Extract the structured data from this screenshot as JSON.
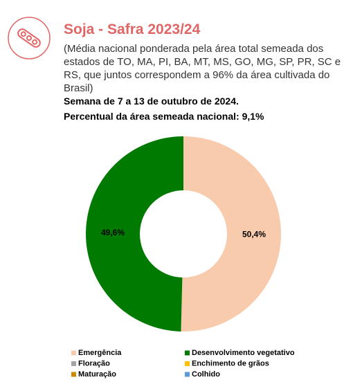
{
  "chart_data": {
    "type": "donut",
    "title": "Soja - Safra 2023/24",
    "subtitle": "(Média nacional ponderada pela área total semeada dos estados de TO, MA, PI, BA, MT, MS, GO, MG, SP, PR, SC e RS, que juntos correspondem a 96% da área cultivada do Brasil)",
    "notes": [
      "Semana de 7 a 13 de outubro de 2024.",
      "Percentual da área semeada nacional: 9,1%"
    ],
    "categories": [
      "Emergência",
      "Desenvolvimento vegetativo",
      "Floração",
      "Enchimento de grãos",
      "Maturação",
      "Colhido"
    ],
    "values": [
      50.4,
      49.6,
      0,
      0,
      0,
      0
    ],
    "value_labels": [
      "50,4%",
      "49,6%",
      null,
      null,
      null,
      null
    ],
    "colors": [
      "#f8cbad",
      "#007a00",
      "#a5a5a5",
      "#ffc000",
      "#c98a00",
      "#5b9bd5"
    ]
  }
}
